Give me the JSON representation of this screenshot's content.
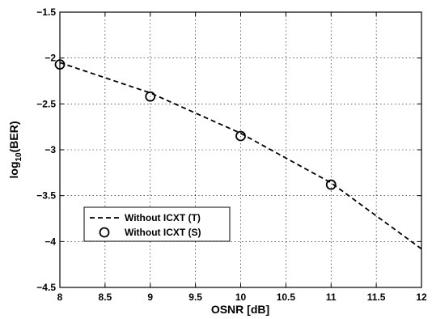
{
  "chart_data": {
    "type": "line",
    "xlabel": "OSNR [dB]",
    "ylabel": {
      "prefix": "log",
      "subscript": "10",
      "suffix": "(BER)"
    },
    "xlim": [
      8,
      12
    ],
    "ylim": [
      -4.5,
      -1.5
    ],
    "x_ticks": [
      8,
      8.5,
      9,
      9.5,
      10,
      10.5,
      11,
      11.5,
      12
    ],
    "x_tick_labels": [
      "8",
      "8.5",
      "9",
      "9.5",
      "10",
      "10.5",
      "11",
      "11.5",
      "12"
    ],
    "y_ticks": [
      -4.5,
      -4,
      -3.5,
      -3,
      -2.5,
      -2,
      -1.5
    ],
    "y_tick_labels": [
      "−4.5",
      "−4",
      "−3.5",
      "−3",
      "−2.5",
      "−2",
      "−1.5"
    ],
    "grid": true,
    "legend_position": "bottom-left",
    "series": [
      {
        "name": "Without ICXT (T)",
        "style": "dashed-line",
        "color": "#000000",
        "x": [
          8,
          9,
          10,
          11,
          12
        ],
        "y": [
          -2.05,
          -2.38,
          -2.82,
          -3.36,
          -4.08
        ]
      },
      {
        "name": "Without ICXT (S)",
        "style": "circle-marker",
        "color": "#000000",
        "x": [
          8,
          9,
          10,
          11
        ],
        "y": [
          -2.07,
          -2.42,
          -2.85,
          -3.38
        ]
      }
    ]
  }
}
